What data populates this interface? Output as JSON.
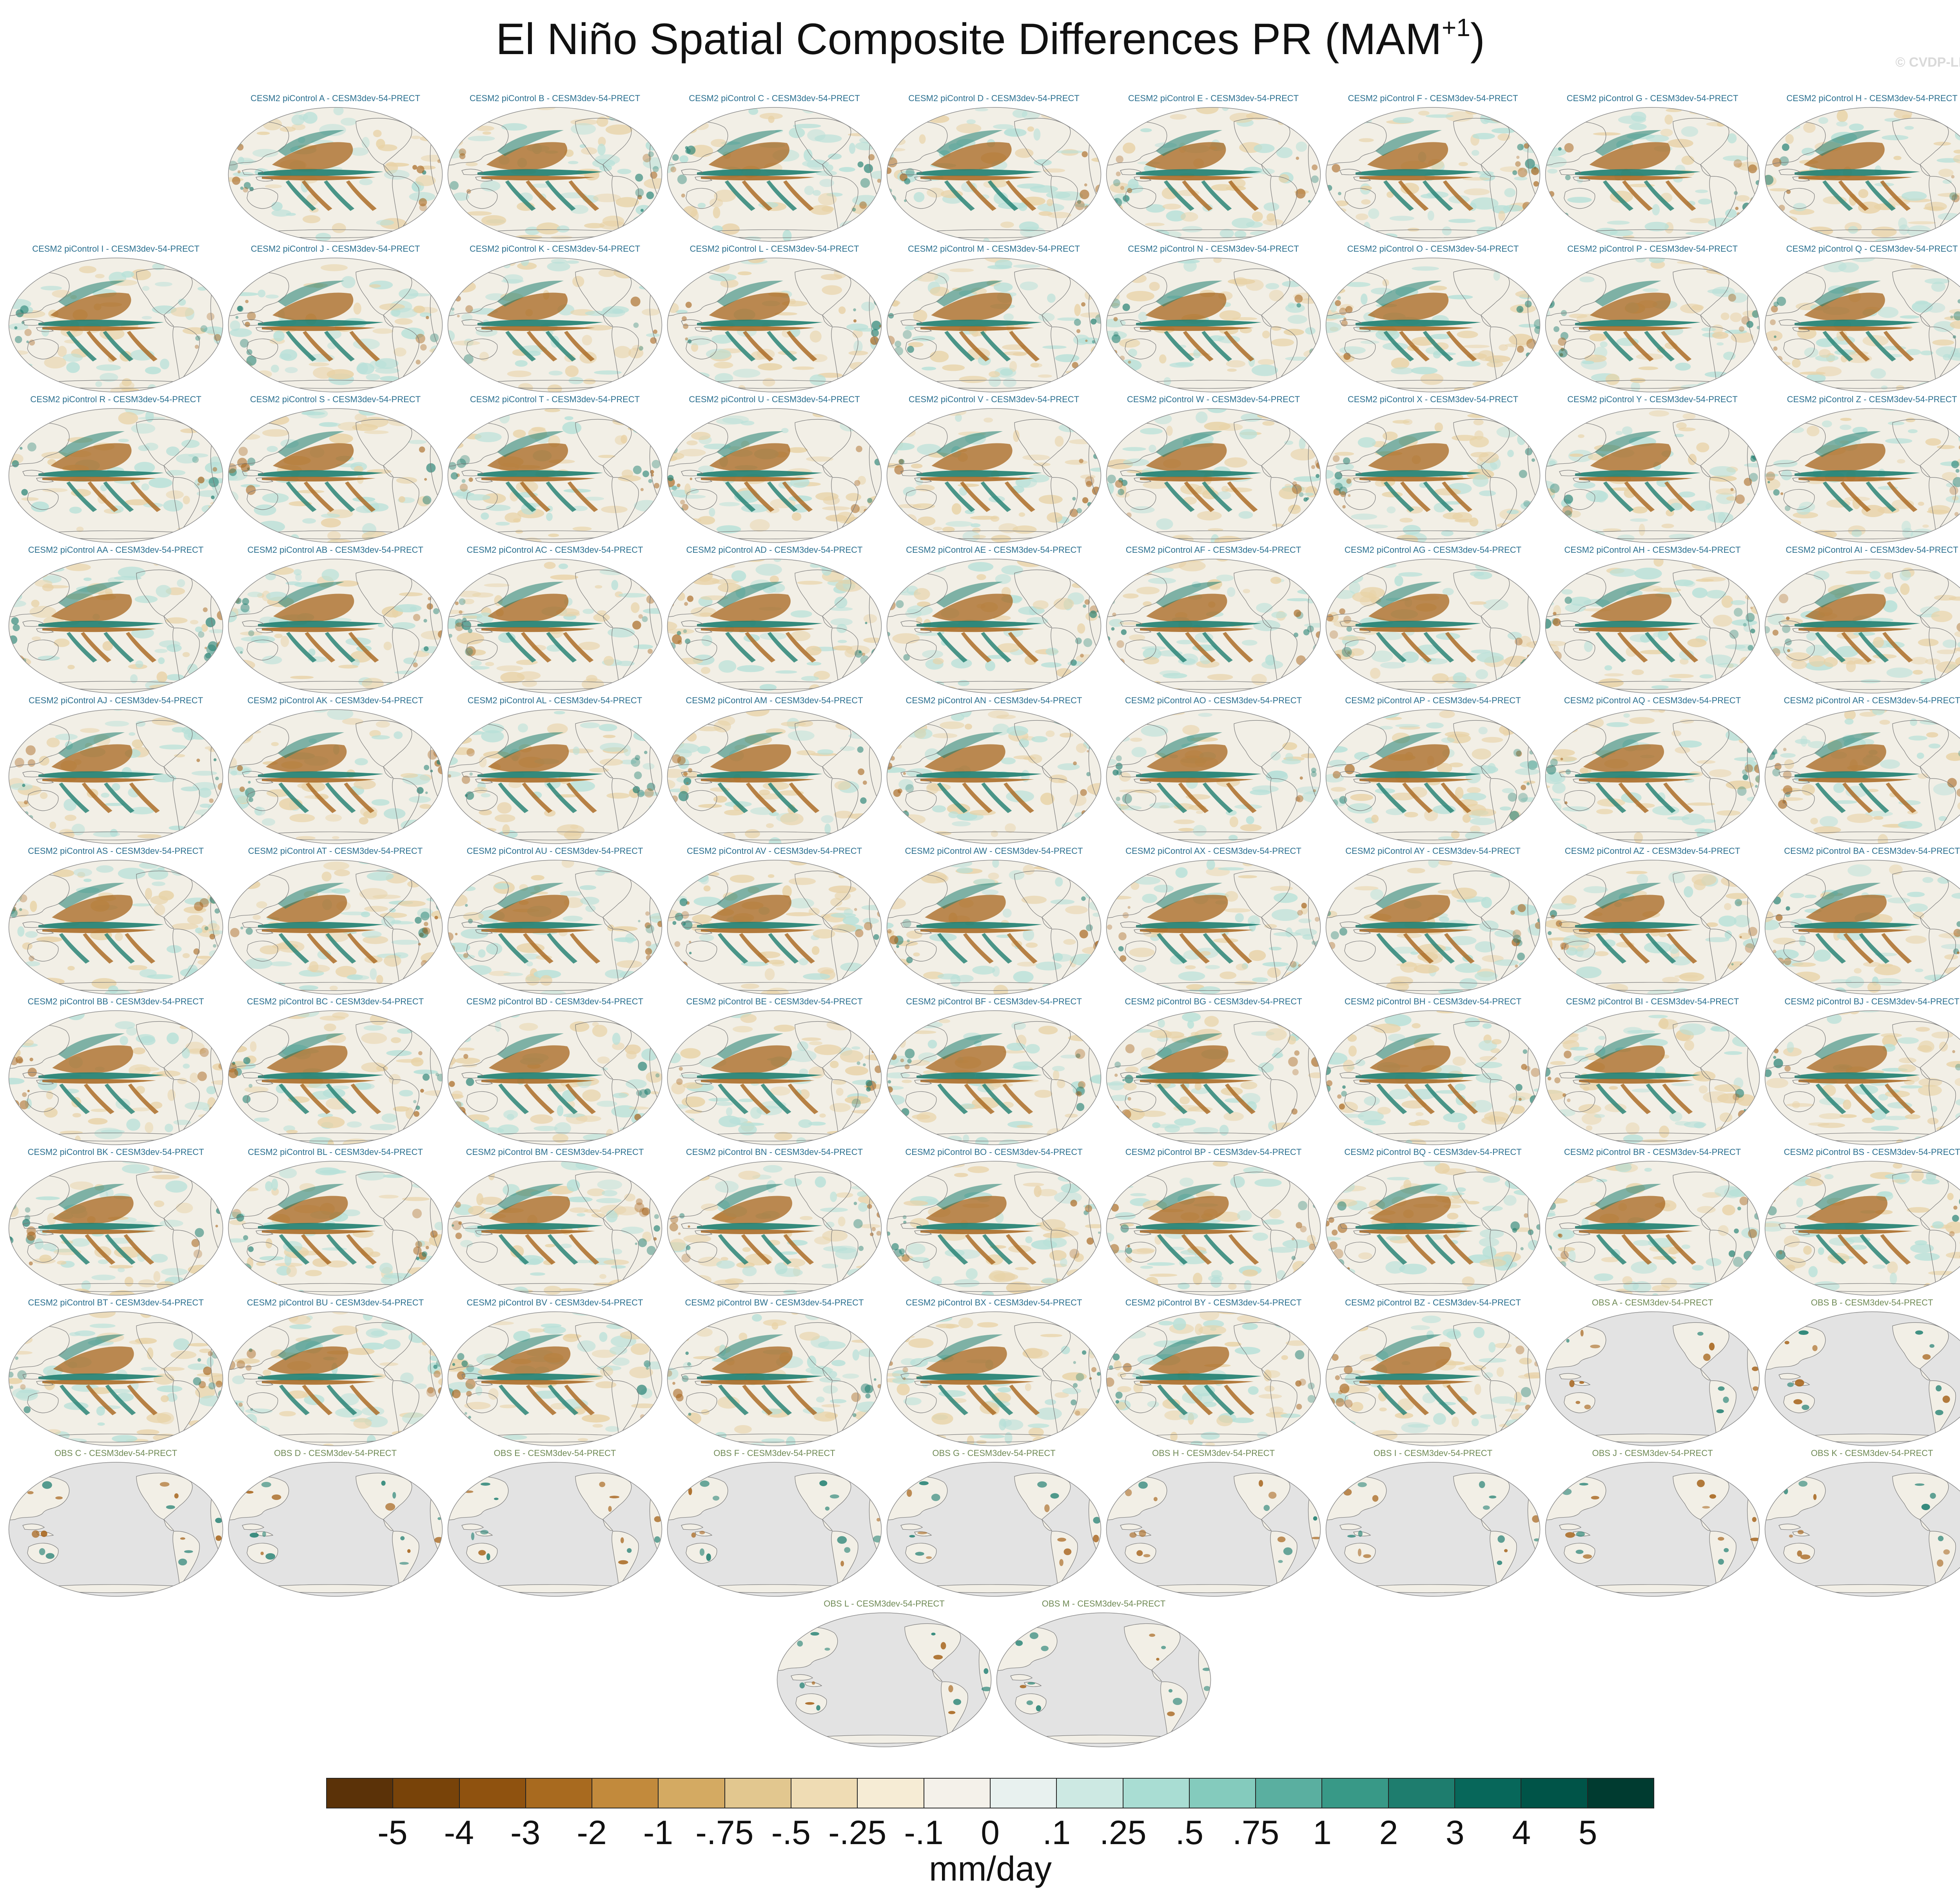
{
  "title": {
    "text": "El Niño Spatial Composite Differences PR (MAM",
    "superscript": "+1",
    "suffix": ")"
  },
  "watermark": "© CVDP-LE",
  "panels": [
    {
      "label": "CESM2 piControl A - CESM3dev-54-PRECT",
      "kind": "model"
    },
    {
      "label": "CESM2 piControl B - CESM3dev-54-PRECT",
      "kind": "model"
    },
    {
      "label": "CESM2 piControl C - CESM3dev-54-PRECT",
      "kind": "model"
    },
    {
      "label": "CESM2 piControl D - CESM3dev-54-PRECT",
      "kind": "model"
    },
    {
      "label": "CESM2 piControl E - CESM3dev-54-PRECT",
      "kind": "model"
    },
    {
      "label": "CESM2 piControl F - CESM3dev-54-PRECT",
      "kind": "model"
    },
    {
      "label": "CESM2 piControl G - CESM3dev-54-PRECT",
      "kind": "model"
    },
    {
      "label": "CESM2 piControl H - CESM3dev-54-PRECT",
      "kind": "model"
    },
    {
      "label": "CESM2 piControl I - CESM3dev-54-PRECT",
      "kind": "model"
    },
    {
      "label": "CESM2 piControl J - CESM3dev-54-PRECT",
      "kind": "model"
    },
    {
      "label": "CESM2 piControl K - CESM3dev-54-PRECT",
      "kind": "model"
    },
    {
      "label": "CESM2 piControl L - CESM3dev-54-PRECT",
      "kind": "model"
    },
    {
      "label": "CESM2 piControl M - CESM3dev-54-PRECT",
      "kind": "model"
    },
    {
      "label": "CESM2 piControl N - CESM3dev-54-PRECT",
      "kind": "model"
    },
    {
      "label": "CESM2 piControl O - CESM3dev-54-PRECT",
      "kind": "model"
    },
    {
      "label": "CESM2 piControl P - CESM3dev-54-PRECT",
      "kind": "model"
    },
    {
      "label": "CESM2 piControl Q - CESM3dev-54-PRECT",
      "kind": "model"
    },
    {
      "label": "CESM2 piControl R - CESM3dev-54-PRECT",
      "kind": "model"
    },
    {
      "label": "CESM2 piControl S - CESM3dev-54-PRECT",
      "kind": "model"
    },
    {
      "label": "CESM2 piControl T - CESM3dev-54-PRECT",
      "kind": "model"
    },
    {
      "label": "CESM2 piControl U - CESM3dev-54-PRECT",
      "kind": "model"
    },
    {
      "label": "CESM2 piControl V - CESM3dev-54-PRECT",
      "kind": "model"
    },
    {
      "label": "CESM2 piControl W - CESM3dev-54-PRECT",
      "kind": "model"
    },
    {
      "label": "CESM2 piControl X - CESM3dev-54-PRECT",
      "kind": "model"
    },
    {
      "label": "CESM2 piControl Y - CESM3dev-54-PRECT",
      "kind": "model"
    },
    {
      "label": "CESM2 piControl Z - CESM3dev-54-PRECT",
      "kind": "model"
    },
    {
      "label": "CESM2 piControl AA - CESM3dev-54-PRECT",
      "kind": "model"
    },
    {
      "label": "CESM2 piControl AB - CESM3dev-54-PRECT",
      "kind": "model"
    },
    {
      "label": "CESM2 piControl AC - CESM3dev-54-PRECT",
      "kind": "model"
    },
    {
      "label": "CESM2 piControl AD - CESM3dev-54-PRECT",
      "kind": "model"
    },
    {
      "label": "CESM2 piControl AE - CESM3dev-54-PRECT",
      "kind": "model"
    },
    {
      "label": "CESM2 piControl AF - CESM3dev-54-PRECT",
      "kind": "model"
    },
    {
      "label": "CESM2 piControl AG - CESM3dev-54-PRECT",
      "kind": "model"
    },
    {
      "label": "CESM2 piControl AH - CESM3dev-54-PRECT",
      "kind": "model"
    },
    {
      "label": "CESM2 piControl AI - CESM3dev-54-PRECT",
      "kind": "model"
    },
    {
      "label": "CESM2 piControl AJ - CESM3dev-54-PRECT",
      "kind": "model"
    },
    {
      "label": "CESM2 piControl AK - CESM3dev-54-PRECT",
      "kind": "model"
    },
    {
      "label": "CESM2 piControl AL - CESM3dev-54-PRECT",
      "kind": "model"
    },
    {
      "label": "CESM2 piControl AM - CESM3dev-54-PRECT",
      "kind": "model"
    },
    {
      "label": "CESM2 piControl AN - CESM3dev-54-PRECT",
      "kind": "model"
    },
    {
      "label": "CESM2 piControl AO - CESM3dev-54-PRECT",
      "kind": "model"
    },
    {
      "label": "CESM2 piControl AP - CESM3dev-54-PRECT",
      "kind": "model"
    },
    {
      "label": "CESM2 piControl AQ - CESM3dev-54-PRECT",
      "kind": "model"
    },
    {
      "label": "CESM2 piControl AR - CESM3dev-54-PRECT",
      "kind": "model"
    },
    {
      "label": "CESM2 piControl AS - CESM3dev-54-PRECT",
      "kind": "model"
    },
    {
      "label": "CESM2 piControl AT - CESM3dev-54-PRECT",
      "kind": "model"
    },
    {
      "label": "CESM2 piControl AU - CESM3dev-54-PRECT",
      "kind": "model"
    },
    {
      "label": "CESM2 piControl AV - CESM3dev-54-PRECT",
      "kind": "model"
    },
    {
      "label": "CESM2 piControl AW - CESM3dev-54-PRECT",
      "kind": "model"
    },
    {
      "label": "CESM2 piControl AX - CESM3dev-54-PRECT",
      "kind": "model"
    },
    {
      "label": "CESM2 piControl AY - CESM3dev-54-PRECT",
      "kind": "model"
    },
    {
      "label": "CESM2 piControl AZ - CESM3dev-54-PRECT",
      "kind": "model"
    },
    {
      "label": "CESM2 piControl BA - CESM3dev-54-PRECT",
      "kind": "model"
    },
    {
      "label": "CESM2 piControl BB - CESM3dev-54-PRECT",
      "kind": "model"
    },
    {
      "label": "CESM2 piControl BC - CESM3dev-54-PRECT",
      "kind": "model"
    },
    {
      "label": "CESM2 piControl BD - CESM3dev-54-PRECT",
      "kind": "model"
    },
    {
      "label": "CESM2 piControl BE - CESM3dev-54-PRECT",
      "kind": "model"
    },
    {
      "label": "CESM2 piControl BF - CESM3dev-54-PRECT",
      "kind": "model"
    },
    {
      "label": "CESM2 piControl BG - CESM3dev-54-PRECT",
      "kind": "model"
    },
    {
      "label": "CESM2 piControl BH - CESM3dev-54-PRECT",
      "kind": "model"
    },
    {
      "label": "CESM2 piControl BI - CESM3dev-54-PRECT",
      "kind": "model"
    },
    {
      "label": "CESM2 piControl BJ - CESM3dev-54-PRECT",
      "kind": "model"
    },
    {
      "label": "CESM2 piControl BK - CESM3dev-54-PRECT",
      "kind": "model"
    },
    {
      "label": "CESM2 piControl BL - CESM3dev-54-PRECT",
      "kind": "model"
    },
    {
      "label": "CESM2 piControl BM - CESM3dev-54-PRECT",
      "kind": "model"
    },
    {
      "label": "CESM2 piControl BN - CESM3dev-54-PRECT",
      "kind": "model"
    },
    {
      "label": "CESM2 piControl BO - CESM3dev-54-PRECT",
      "kind": "model"
    },
    {
      "label": "CESM2 piControl BP - CESM3dev-54-PRECT",
      "kind": "model"
    },
    {
      "label": "CESM2 piControl BQ - CESM3dev-54-PRECT",
      "kind": "model"
    },
    {
      "label": "CESM2 piControl BR - CESM3dev-54-PRECT",
      "kind": "model"
    },
    {
      "label": "CESM2 piControl BS - CESM3dev-54-PRECT",
      "kind": "model"
    },
    {
      "label": "CESM2 piControl BT - CESM3dev-54-PRECT",
      "kind": "model"
    },
    {
      "label": "CESM2 piControl BU - CESM3dev-54-PRECT",
      "kind": "model"
    },
    {
      "label": "CESM2 piControl BV - CESM3dev-54-PRECT",
      "kind": "model"
    },
    {
      "label": "CESM2 piControl BW - CESM3dev-54-PRECT",
      "kind": "model"
    },
    {
      "label": "CESM2 piControl BX - CESM3dev-54-PRECT",
      "kind": "model"
    },
    {
      "label": "CESM2 piControl BY - CESM3dev-54-PRECT",
      "kind": "model"
    },
    {
      "label": "CESM2 piControl BZ - CESM3dev-54-PRECT",
      "kind": "model"
    },
    {
      "label": "OBS A - CESM3dev-54-PRECT",
      "kind": "obs"
    },
    {
      "label": "OBS B - CESM3dev-54-PRECT",
      "kind": "obs"
    },
    {
      "label": "OBS C - CESM3dev-54-PRECT",
      "kind": "obs"
    },
    {
      "label": "OBS D - CESM3dev-54-PRECT",
      "kind": "obs"
    },
    {
      "label": "OBS E - CESM3dev-54-PRECT",
      "kind": "obs"
    },
    {
      "label": "OBS F - CESM3dev-54-PRECT",
      "kind": "obs"
    },
    {
      "label": "OBS G - CESM3dev-54-PRECT",
      "kind": "obs"
    },
    {
      "label": "OBS H - CESM3dev-54-PRECT",
      "kind": "obs"
    },
    {
      "label": "OBS I - CESM3dev-54-PRECT",
      "kind": "obs"
    },
    {
      "label": "OBS J - CESM3dev-54-PRECT",
      "kind": "obs"
    },
    {
      "label": "OBS K - CESM3dev-54-PRECT",
      "kind": "obs"
    },
    {
      "label": "OBS L - CESM3dev-54-PRECT",
      "kind": "obs"
    },
    {
      "label": "OBS M - CESM3dev-54-PRECT",
      "kind": "obs"
    }
  ],
  "colorbar": {
    "colors": [
      "#5b3208",
      "#784309",
      "#8f520f",
      "#a86a1f",
      "#c28a3c",
      "#d4aa62",
      "#e2c78f",
      "#efdcb4",
      "#f6ecd5",
      "#f4f1ea",
      "#e8f1ef",
      "#cde9e3",
      "#a9ddd3",
      "#84cbbd",
      "#5aafa0",
      "#389987",
      "#1e7d6e",
      "#07675a",
      "#005448",
      "#003b30"
    ],
    "labels": [
      "-5",
      "-4",
      "-3",
      "-2",
      "-1",
      "-.75",
      "-.5",
      "-.25",
      "-.1",
      "0",
      ".1",
      ".25",
      ".5",
      ".75",
      "1",
      "2",
      "3",
      "4",
      "5"
    ],
    "units": "mm/day"
  },
  "map_colors": {
    "ocean_background": "#f2efe6",
    "missing_data": "#e3e3e3",
    "coastline": "#777777",
    "dry_anomaly": "#a7651d",
    "wet_anomaly": "#1f7e70",
    "light_dry": "#e8d2a6",
    "light_wet": "#b7e0d8"
  }
}
